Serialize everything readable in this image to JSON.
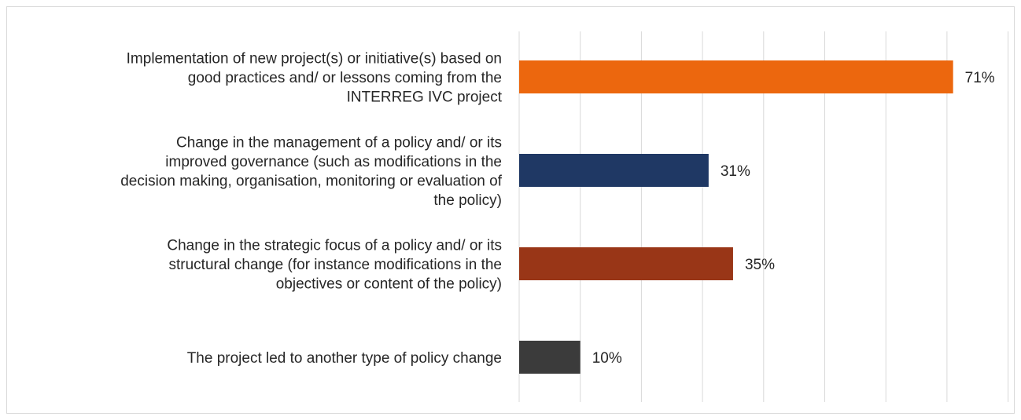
{
  "chart_data": {
    "type": "bar",
    "orientation": "horizontal",
    "categories": [
      [
        "Implementation of new project(s) or initiative(s) based on",
        "good practices and/ or lessons coming from the",
        "INTERREG IVC project"
      ],
      [
        "Change in the management of a policy and/ or its",
        "improved governance (such as modifications in the",
        "decision making, organisation, monitoring or evaluation of",
        "the policy)"
      ],
      [
        "Change in the strategic focus of a policy and/ or its",
        "structural change (for instance modifications in the",
        "objectives or content of the policy)"
      ],
      [
        "The project led to another type of policy change"
      ]
    ],
    "values": [
      71,
      31,
      35,
      10
    ],
    "value_labels": [
      "71%",
      "31%",
      "35%",
      "10%"
    ],
    "colors": [
      "#ec670e",
      "#1f3864",
      "#993617",
      "#3b3b3b"
    ],
    "xlim": [
      0,
      80
    ],
    "grid_step": 10,
    "grid": true,
    "title": "",
    "xlabel": "",
    "ylabel": ""
  }
}
